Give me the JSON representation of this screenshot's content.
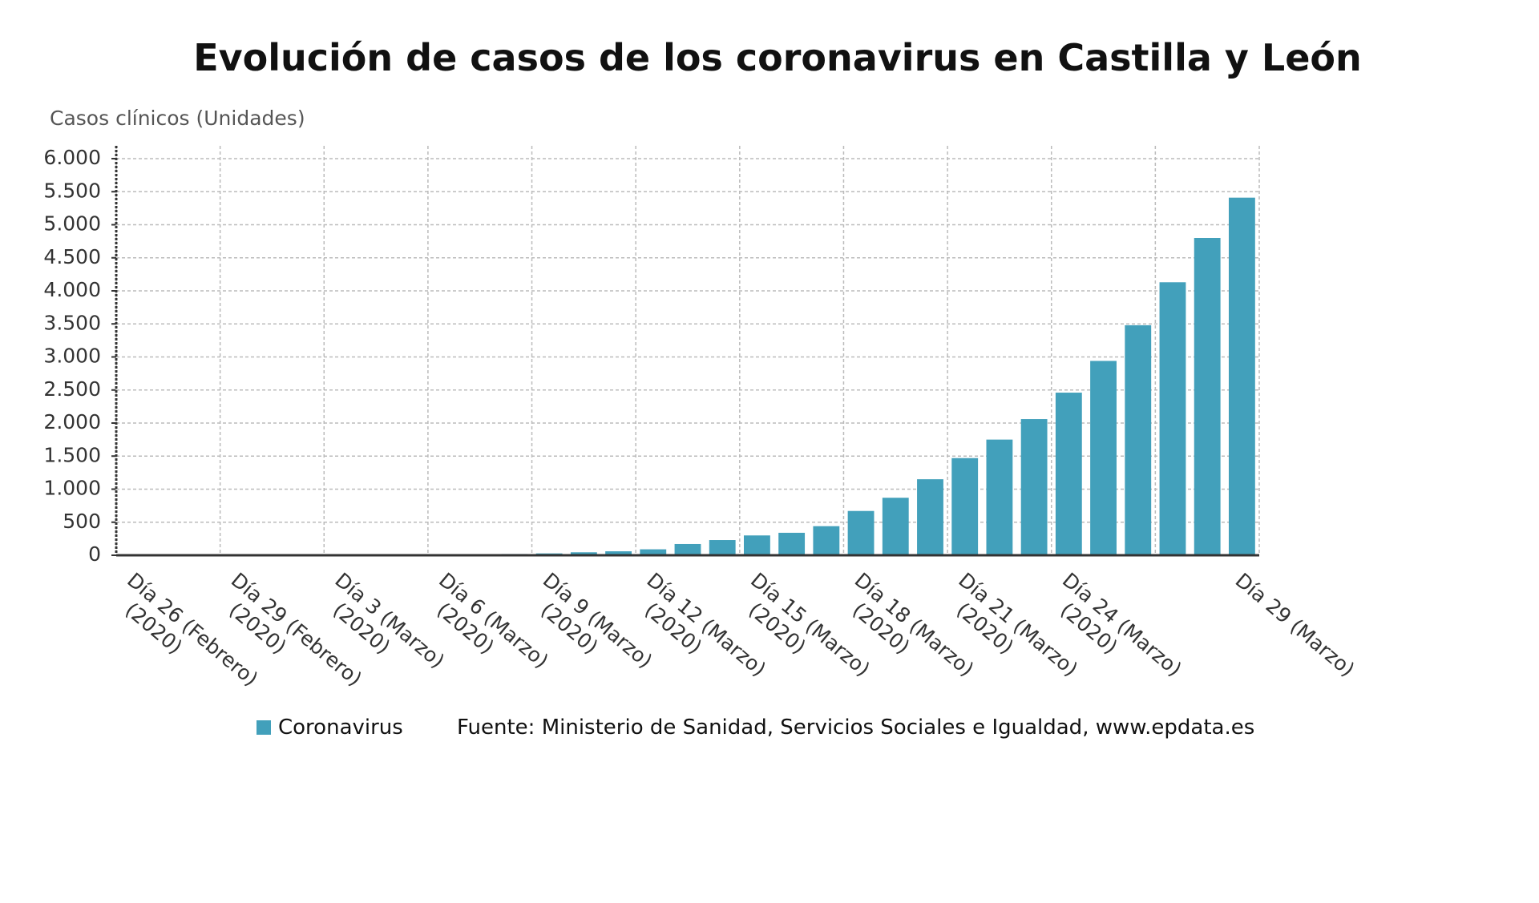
{
  "chart_data": {
    "type": "bar",
    "title": "Evolución de casos de los coronavirus en Castilla y León",
    "y_axis_label": "Casos clínicos (Unidades)",
    "source": "Fuente: Ministerio de Sanidad, Servicios Sociales e Igualdad, www.epdata.es",
    "categories": [
      "Día 26 (Febrero) (2020)",
      null,
      null,
      "Día 29 (Febrero) (2020)",
      null,
      null,
      "Día 3 (Marzo) (2020)",
      null,
      null,
      "Día 6 (Marzo) (2020)",
      null,
      null,
      "Día 9 (Marzo) (2020)",
      null,
      null,
      "Día 12 (Marzo) (2020)",
      null,
      null,
      "Día 15 (Marzo) (2020)",
      null,
      null,
      "Día 18 (Marzo) (2020)",
      null,
      null,
      "Día 21 (Marzo) (2020)",
      null,
      null,
      "Día 24 (Marzo) (2020)",
      null,
      null,
      null,
      null,
      "Día 29 (Marzo)"
    ],
    "series": [
      {
        "name": "Coronavirus",
        "color": "#42a0bb",
        "values": [
          0,
          0,
          0,
          0,
          2,
          3,
          6,
          9,
          11,
          13,
          16,
          19,
          28,
          45,
          60,
          90,
          170,
          230,
          300,
          340,
          440,
          670,
          870,
          1150,
          1470,
          1750,
          2060,
          2460,
          2940,
          3480,
          4130,
          4800,
          5410
        ]
      }
    ],
    "ylim": [
      0,
      6000
    ],
    "yticks": [
      0,
      500,
      {
        "value": 1000,
        "label": "1.000"
      },
      {
        "value": 1500,
        "label": "1.500"
      },
      {
        "value": 2000,
        "label": "2.000"
      },
      {
        "value": 2500,
        "label": "2.500"
      },
      {
        "value": 3000,
        "label": "3.000"
      },
      {
        "value": 3500,
        "label": "3.500"
      },
      {
        "value": 4000,
        "label": "4.000"
      },
      {
        "value": 4500,
        "label": "4.500"
      },
      {
        "value": 5000,
        "label": "5.000"
      },
      {
        "value": 5500,
        "label": "5.500"
      },
      {
        "value": 6000,
        "label": "6.000"
      }
    ],
    "grid": true
  }
}
